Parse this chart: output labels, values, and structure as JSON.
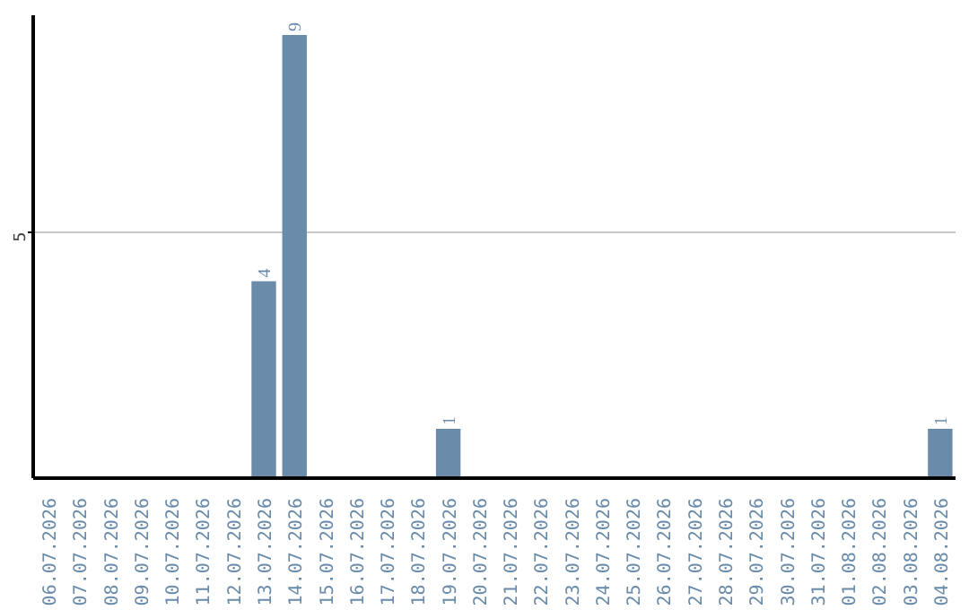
{
  "chart_data": {
    "type": "bar",
    "categories": [
      "06.07.2026",
      "07.07.2026",
      "08.07.2026",
      "09.07.2026",
      "10.07.2026",
      "11.07.2026",
      "12.07.2026",
      "13.07.2026",
      "14.07.2026",
      "15.07.2026",
      "16.07.2026",
      "17.07.2026",
      "18.07.2026",
      "19.07.2026",
      "20.07.2026",
      "21.07.2026",
      "22.07.2026",
      "23.07.2026",
      "24.07.2026",
      "25.07.2026",
      "26.07.2026",
      "27.07.2026",
      "28.07.2026",
      "29.07.2026",
      "30.07.2026",
      "31.07.2026",
      "01.08.2026",
      "02.08.2026",
      "03.08.2026",
      "04.08.2026"
    ],
    "values": [
      0,
      0,
      0,
      0,
      0,
      0,
      0,
      4,
      9,
      0,
      0,
      0,
      0,
      1,
      0,
      0,
      0,
      0,
      0,
      0,
      0,
      0,
      0,
      0,
      0,
      0,
      0,
      0,
      0,
      1
    ],
    "value_labels": [
      null,
      null,
      null,
      null,
      null,
      null,
      null,
      "4",
      "9",
      null,
      null,
      null,
      null,
      "1",
      null,
      null,
      null,
      null,
      null,
      null,
      null,
      null,
      null,
      null,
      null,
      null,
      null,
      null,
      null,
      "1"
    ],
    "color": "#6a8caa",
    "ylim": [
      0,
      9.4
    ],
    "yticks": [
      5
    ],
    "grid": "y"
  }
}
